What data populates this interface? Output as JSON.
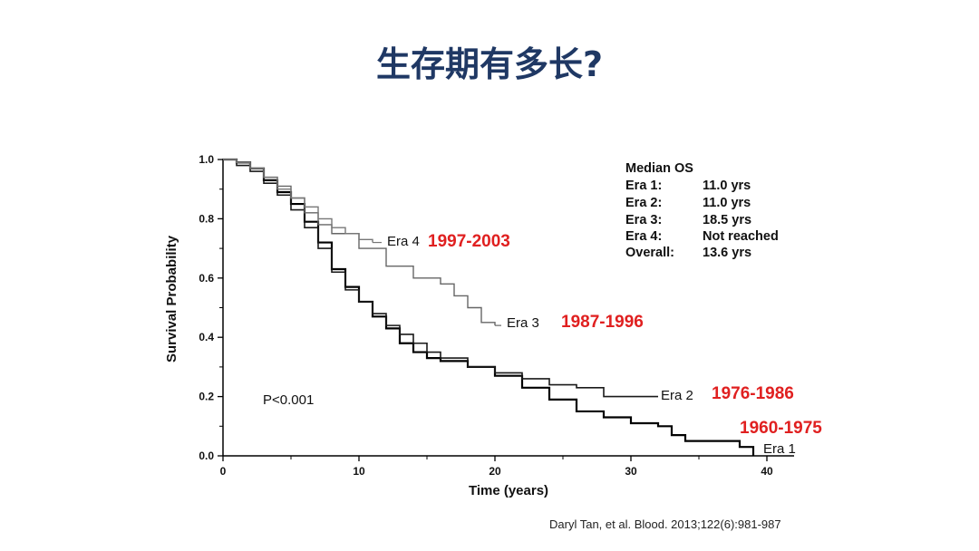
{
  "title": "生存期有多长?",
  "citation": "Daryl Tan, et al. Blood. 2013;122(6):981-987",
  "colors": {
    "title": "#1f3864",
    "years_highlight": "#e02020"
  },
  "chart_data": {
    "type": "line",
    "xlabel": "Time (years)",
    "ylabel": "Survival Probability",
    "xlim": [
      0,
      42
    ],
    "ylim": [
      0,
      1.0
    ],
    "xticks": [
      "0",
      "10",
      "20",
      "30",
      "40"
    ],
    "yticks": [
      "0.0",
      "0.2",
      "0.4",
      "0.6",
      "0.8",
      "1.0"
    ],
    "grid": false,
    "annotation": "P<0.001",
    "legend_box": {
      "header": "Median OS",
      "rows": [
        {
          "label": "Era 1:",
          "value": "11.0 yrs"
        },
        {
          "label": "Era 2:",
          "value": "11.0 yrs"
        },
        {
          "label": "Era 3:",
          "value": "18.5 yrs"
        },
        {
          "label": "Era 4:",
          "value": "Not reached"
        },
        {
          "label": "Overall:",
          "value": "13.6 yrs"
        }
      ]
    },
    "series": [
      {
        "name": "Era 1",
        "years": "1960-1975",
        "color": "#000000",
        "x": [
          0,
          1,
          2,
          3,
          4,
          5,
          6,
          7,
          8,
          9,
          10,
          11,
          12,
          13,
          14,
          15,
          16,
          18,
          20,
          22,
          24,
          26,
          28,
          30,
          32,
          33,
          34,
          36,
          38,
          39
        ],
        "y": [
          1.0,
          0.99,
          0.97,
          0.93,
          0.89,
          0.85,
          0.79,
          0.72,
          0.63,
          0.57,
          0.52,
          0.47,
          0.43,
          0.38,
          0.35,
          0.33,
          0.32,
          0.3,
          0.27,
          0.23,
          0.19,
          0.15,
          0.13,
          0.11,
          0.1,
          0.07,
          0.05,
          0.05,
          0.03,
          0.0
        ]
      },
      {
        "name": "Era 2",
        "years": "1976-1986",
        "color": "#1a1a1a",
        "x": [
          0,
          1,
          2,
          3,
          4,
          5,
          6,
          7,
          8,
          9,
          10,
          11,
          12,
          13,
          14,
          15,
          16,
          18,
          20,
          22,
          24,
          26,
          28,
          30,
          32
        ],
        "y": [
          1.0,
          0.98,
          0.96,
          0.92,
          0.88,
          0.83,
          0.77,
          0.7,
          0.62,
          0.56,
          0.52,
          0.48,
          0.44,
          0.41,
          0.38,
          0.35,
          0.33,
          0.3,
          0.28,
          0.26,
          0.24,
          0.23,
          0.2,
          0.2,
          0.2
        ]
      },
      {
        "name": "Era 3",
        "years": "1987-1996",
        "color": "#666666",
        "x": [
          0,
          1,
          2,
          3,
          4,
          5,
          6,
          7,
          8,
          10,
          12,
          14,
          16,
          17,
          18,
          19,
          20
        ],
        "y": [
          1.0,
          0.99,
          0.97,
          0.94,
          0.91,
          0.87,
          0.82,
          0.78,
          0.75,
          0.7,
          0.64,
          0.6,
          0.58,
          0.54,
          0.5,
          0.45,
          0.44
        ]
      },
      {
        "name": "Era 4",
        "years": "1997-2003",
        "color": "#777777",
        "x": [
          0,
          1,
          2,
          3,
          4,
          5,
          6,
          7,
          8,
          9,
          10,
          11
        ],
        "y": [
          1.0,
          0.99,
          0.97,
          0.94,
          0.9,
          0.87,
          0.84,
          0.8,
          0.77,
          0.75,
          0.73,
          0.72
        ]
      }
    ]
  }
}
